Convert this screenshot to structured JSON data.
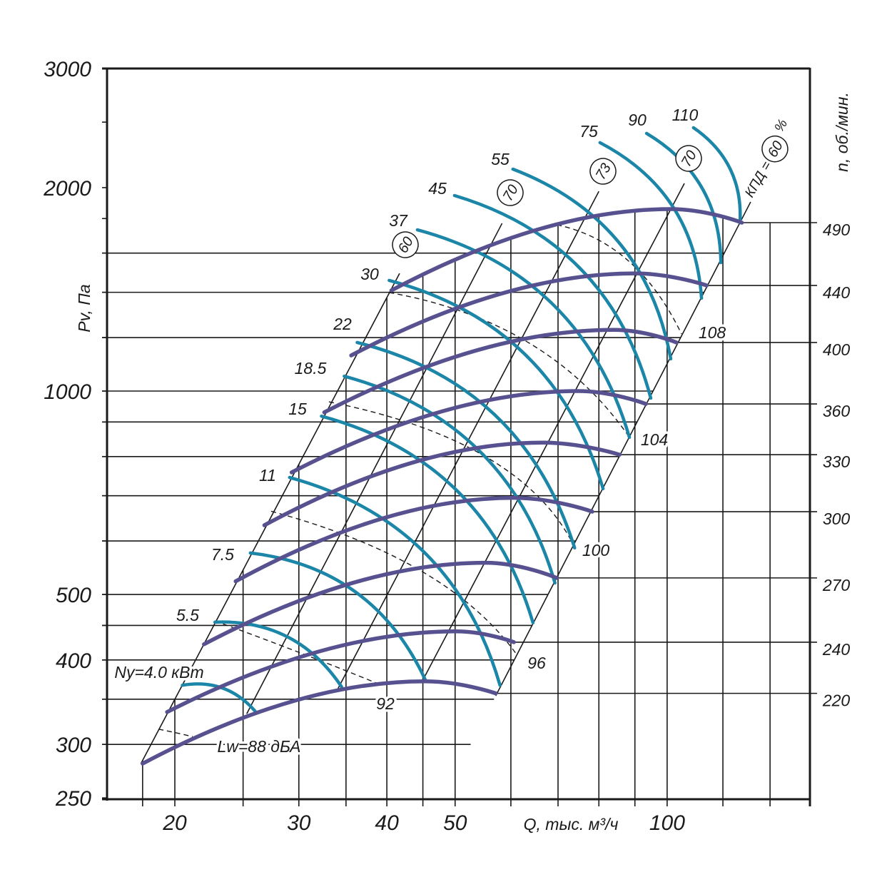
{
  "colors": {
    "speed_curve": "#57528f",
    "power_curve": "#1b86a8",
    "grid": "#1a1a1a"
  },
  "chart_data": {
    "type": "line",
    "title": "",
    "xlabel": "Q, тыс. м³/ч",
    "ylabel": "Pv, Па",
    "y2label": "n, об./мин.",
    "xscale": "log",
    "yscale": "log",
    "xlim": [
      16,
      160
    ],
    "ylim": [
      250,
      3000
    ],
    "x_ticks": [
      {
        "value": 20,
        "label": "20"
      },
      {
        "value": 30,
        "label": "30"
      },
      {
        "value": 40,
        "label": "40"
      },
      {
        "value": 50,
        "label": "50"
      },
      {
        "value": 100,
        "label": "100"
      }
    ],
    "x_grid": [
      18,
      20,
      25,
      30,
      35,
      40,
      45,
      50,
      60,
      70,
      80,
      90,
      100,
      120,
      140
    ],
    "y_ticks": [
      {
        "value": 3000,
        "label": "3000"
      },
      {
        "value": 2000,
        "label": "2000"
      },
      {
        "value": 1000,
        "label": "1000"
      },
      {
        "value": 500,
        "label": "500"
      },
      {
        "value": 400,
        "label": "400"
      },
      {
        "value": 300,
        "label": "300"
      },
      {
        "value": 250,
        "label": "250"
      }
    ],
    "y_minor_ticks": [
      2500,
      1800,
      1600,
      1400,
      1200,
      900,
      800,
      700,
      600,
      450,
      350
    ],
    "y_grid": [
      1600,
      1400,
      1200,
      1000,
      900,
      800,
      700,
      600,
      500,
      450,
      400,
      350,
      300
    ],
    "speed_curves": [
      {
        "rpm": "490",
        "points": [
          [
            40.6,
            1409
          ],
          [
            101.2,
            1859
          ],
          [
            127.7,
            1775
          ]
        ]
      },
      {
        "rpm": "440",
        "points": [
          [
            35.6,
            1129
          ],
          [
            90.0,
            1493
          ],
          [
            113.8,
            1433
          ]
        ]
      },
      {
        "rpm": "400",
        "points": [
          [
            32.6,
            930
          ],
          [
            84.0,
            1232
          ],
          [
            103.1,
            1180
          ]
        ]
      },
      {
        "rpm": "360",
        "points": [
          [
            29.3,
            758
          ],
          [
            74.7,
            1000
          ],
          [
            93.3,
            957
          ]
        ]
      },
      {
        "rpm": "330",
        "points": [
          [
            26.8,
            633
          ],
          [
            66.5,
            839
          ],
          [
            85.6,
            805
          ]
        ]
      },
      {
        "rpm": "300",
        "points": [
          [
            24.4,
            523
          ],
          [
            60.6,
            695
          ],
          [
            78.3,
            663
          ]
        ]
      },
      {
        "rpm": "270",
        "points": [
          [
            22.0,
            422
          ],
          [
            55.2,
            557
          ],
          [
            69.7,
            529
          ]
        ]
      },
      {
        "rpm": "240",
        "points": [
          [
            19.5,
            335
          ],
          [
            50.2,
            441
          ],
          [
            60.6,
            425
          ]
        ]
      },
      {
        "rpm": "220",
        "points": [
          [
            18.0,
            281
          ],
          [
            45.3,
            372
          ],
          [
            57.1,
            357
          ]
        ]
      }
    ],
    "power_curves": [
      {
        "label": "Ny=4.0 кВт",
        "kw": 4.0,
        "points": [
          [
            20.5,
            367
          ],
          [
            26.0,
            336
          ]
        ]
      },
      {
        "label": "5.5",
        "kw": 5.5,
        "points": [
          [
            22.8,
            455
          ],
          [
            34.5,
            365
          ]
        ]
      },
      {
        "label": "7.5",
        "kw": 7.5,
        "points": [
          [
            25.6,
            576
          ],
          [
            45.4,
            373
          ]
        ]
      },
      {
        "label": "11",
        "kw": 11,
        "points": [
          [
            29.1,
            745
          ],
          [
            57.9,
            367
          ]
        ]
      },
      {
        "label": "15",
        "kw": 15,
        "points": [
          [
            32.3,
            918
          ],
          [
            64.5,
            454
          ]
        ]
      },
      {
        "label": "18.5",
        "kw": 18.5,
        "points": [
          [
            34.8,
            1052
          ],
          [
            69.3,
            520
          ]
        ]
      },
      {
        "label": "22",
        "kw": 22,
        "points": [
          [
            36.3,
            1180
          ],
          [
            73.9,
            586
          ]
        ]
      },
      {
        "label": "30",
        "kw": 30,
        "points": [
          [
            40.3,
            1458
          ],
          [
            81.1,
            717
          ]
        ]
      },
      {
        "label": "37",
        "kw": 37,
        "points": [
          [
            44.2,
            1732
          ],
          [
            88.4,
            854
          ]
        ]
      },
      {
        "label": "45",
        "kw": 45,
        "points": [
          [
            49.9,
            1947
          ],
          [
            94.8,
            976
          ]
        ]
      },
      {
        "label": "55",
        "kw": 55,
        "points": [
          [
            60.4,
            2130
          ],
          [
            101.2,
            1116
          ]
        ]
      },
      {
        "label": "75",
        "kw": 75,
        "points": [
          [
            80.3,
            2331
          ],
          [
            111.9,
            1372
          ]
        ]
      },
      {
        "label": "90",
        "kw": 90,
        "points": [
          [
            93.5,
            2406
          ],
          [
            119.2,
            1549
          ]
        ]
      },
      {
        "label": "110",
        "kw": 110,
        "points": [
          [
            109.0,
            2453
          ],
          [
            126.9,
            1775
          ]
        ]
      }
    ],
    "noise_curves": [
      {
        "label": "Lw=88 дБА",
        "dba": 88,
        "points": [
          [
            18.96,
            316
          ],
          [
            20.1,
            312
          ],
          [
            21.2,
            308
          ]
        ]
      },
      {
        "label": "92",
        "dba": 92,
        "points": [
          [
            22.8,
            457
          ],
          [
            30.1,
            410
          ],
          [
            38.6,
            370
          ]
        ]
      },
      {
        "label": "96",
        "dba": 96,
        "points": [
          [
            27.4,
            664
          ],
          [
            44.7,
            542
          ],
          [
            61.1,
            408
          ]
        ]
      },
      {
        "label": "100",
        "dba": 100,
        "points": [
          [
            33.1,
            964
          ],
          [
            55.2,
            800
          ],
          [
            73.5,
            594
          ]
        ]
      },
      {
        "label": "104",
        "dba": 104,
        "points": [
          [
            40.3,
            1399
          ],
          [
            63.5,
            1180
          ],
          [
            88.0,
            860
          ]
        ]
      },
      {
        "label": "108",
        "dba": 108,
        "points": [
          [
            69.7,
            1762
          ],
          [
            88.0,
            1560
          ],
          [
            104.8,
            1215
          ]
        ]
      }
    ],
    "efficiency_lines": [
      {
        "label": "60",
        "points": [
          [
            17.9,
            281
          ],
          [
            41.7,
            1493
          ]
        ]
      },
      {
        "label": "70",
        "points": [
          [
            25.3,
            333
          ],
          [
            58.3,
            1771
          ]
        ]
      },
      {
        "label": "73",
        "points": [
          [
            34.1,
            363
          ],
          [
            80.0,
            1975
          ]
        ]
      },
      {
        "label": "70",
        "points": [
          [
            44.9,
            372
          ],
          [
            105.8,
            2029
          ]
        ]
      },
      {
        "label": "60",
        "points": [
          [
            57.1,
            354
          ],
          [
            131.4,
            1905
          ]
        ]
      }
    ],
    "efficiency_title": "КПД =",
    "efficiency_unit": "%"
  }
}
